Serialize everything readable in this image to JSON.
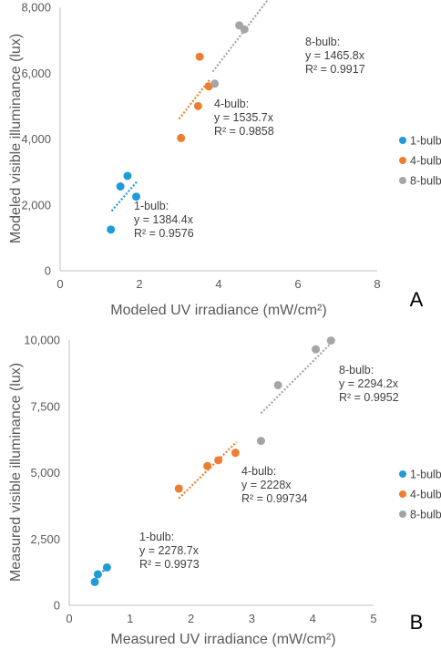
{
  "chart_data": [
    {
      "panel": "A",
      "type": "scatter",
      "xlabel": "Modeled UV irradiance (mW/cm²)",
      "ylabel": "Modeled visible illuminance (lux)",
      "xlim": [
        0,
        8
      ],
      "ylim": [
        0,
        8000
      ],
      "xticks": [
        "0",
        "2",
        "4",
        "6",
        "8"
      ],
      "yticks": [
        "0",
        "2,000",
        "4,000",
        "6,000",
        "8,000"
      ],
      "legend_position": "right",
      "series": [
        {
          "name": "1-bulb",
          "color": "#1f9bd7",
          "points": [
            [
              1.28,
              1250
            ],
            [
              1.52,
              2560
            ],
            [
              1.7,
              2880
            ],
            [
              1.92,
              2250
            ]
          ],
          "trend_x": [
            1.3,
            1.95
          ],
          "annotation": [
            "1-bulb:",
            "y = 1384.4x",
            "R² = 0.9576"
          ]
        },
        {
          "name": "4-bulb",
          "color": "#ed7d31",
          "points": [
            [
              3.05,
              4030
            ],
            [
              3.48,
              5000
            ],
            [
              3.52,
              6500
            ],
            [
              3.75,
              5600
            ]
          ],
          "trend_x": [
            3.0,
            3.78
          ],
          "annotation": [
            "4-bulb:",
            "y = 1535.7x",
            "R² = 0.9858"
          ]
        },
        {
          "name": "8-bulb",
          "color": "#a5a5a5",
          "points": [
            [
              3.9,
              5680
            ],
            [
              4.52,
              7450
            ],
            [
              4.65,
              7330
            ]
          ],
          "trend_x": [
            3.85,
            5.46
          ],
          "annotation": [
            "8-bulb:",
            "y = 1465.8x",
            "R² = 0.9917"
          ]
        }
      ]
    },
    {
      "panel": "B",
      "type": "scatter",
      "xlabel": "Measured UV irradiance (mW/cm²)",
      "ylabel": "Measured visible illuminance (lux)",
      "xlim": [
        0,
        5
      ],
      "ylim": [
        0,
        10000
      ],
      "xticks": [
        "0",
        "1",
        "2",
        "3",
        "4",
        "5"
      ],
      "yticks": [
        "0",
        "2,500",
        "5,000",
        "7,500",
        "10,000"
      ],
      "legend_position": "right",
      "series": [
        {
          "name": "1-bulb",
          "color": "#1f9bd7",
          "points": [
            [
              0.42,
              880
            ],
            [
              0.47,
              1170
            ],
            [
              0.62,
              1430
            ]
          ],
          "trend_x": [
            0.38,
            0.65
          ],
          "annotation": [
            "1-bulb:",
            "y = 2278.7x",
            "R² = 0.9973"
          ]
        },
        {
          "name": "4-bulb",
          "color": "#ed7d31",
          "points": [
            [
              1.8,
              4400
            ],
            [
              2.27,
              5250
            ],
            [
              2.45,
              5470
            ],
            [
              2.73,
              5750
            ]
          ],
          "trend_x": [
            1.8,
            2.75
          ],
          "annotation": [
            "4-bulb:",
            "y = 2228x",
            "R² = 0.99734"
          ]
        },
        {
          "name": "8-bulb",
          "color": "#a5a5a5",
          "points": [
            [
              3.15,
              6200
            ],
            [
              3.43,
              8300
            ],
            [
              4.05,
              9650
            ],
            [
              4.3,
              9980
            ]
          ],
          "trend_x": [
            3.15,
            4.35
          ],
          "annotation": [
            "8-bulb:",
            "y = 2294.2x",
            "R² = 0.9952"
          ]
        }
      ]
    }
  ]
}
